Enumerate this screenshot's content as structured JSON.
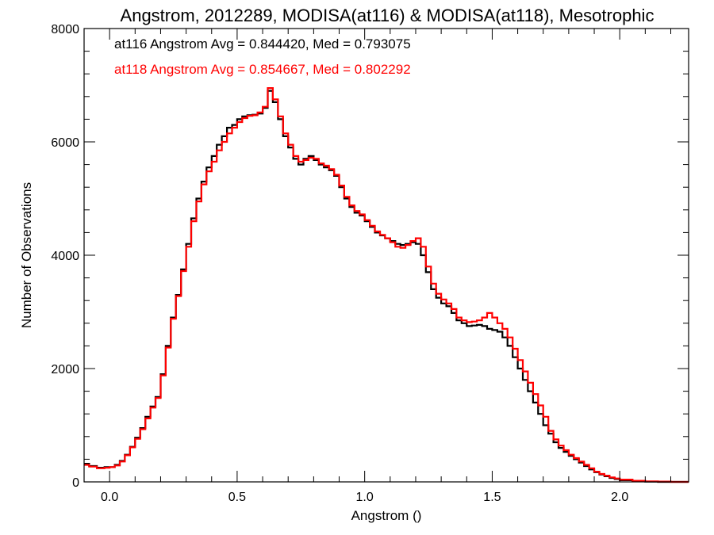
{
  "chart_data": {
    "type": "line",
    "step": true,
    "title": "Angstrom, 2012289, MODISA(at116) & MODISA(at118), Mesotrophic",
    "xlabel": "Angstrom ()",
    "ylabel": "Number of Observations",
    "xlim": [
      -0.1,
      2.27
    ],
    "ylim": [
      0,
      8000
    ],
    "xticks": [
      {
        "value": 0.0,
        "label": "0.0"
      },
      {
        "value": 0.5,
        "label": "0.5"
      },
      {
        "value": 1.0,
        "label": "1.0"
      },
      {
        "value": 1.5,
        "label": "1.5"
      },
      {
        "value": 2.0,
        "label": "2.0"
      }
    ],
    "yticks": [
      {
        "value": 0,
        "label": "0"
      },
      {
        "value": 2000,
        "label": "2000"
      },
      {
        "value": 4000,
        "label": "4000"
      },
      {
        "value": 6000,
        "label": "6000"
      },
      {
        "value": 8000,
        "label": "8000"
      }
    ],
    "x_minor_step": 0.1,
    "y_minor_step": 400,
    "grid": false,
    "annotations": [
      {
        "text": "at116 Angstrom Avg = 0.844420, Med = 0.793075",
        "color": "#000000"
      },
      {
        "text": "at118 Angstrom Avg = 0.854667, Med = 0.802292",
        "color": "#ff0000"
      }
    ],
    "series": [
      {
        "color": "#000000",
        "points": [
          [
            -0.1,
            320
          ],
          [
            -0.08,
            280
          ],
          [
            -0.05,
            250
          ],
          [
            -0.02,
            260
          ],
          [
            0.0,
            260
          ],
          [
            0.02,
            300
          ],
          [
            0.04,
            370
          ],
          [
            0.06,
            480
          ],
          [
            0.08,
            620
          ],
          [
            0.1,
            780
          ],
          [
            0.12,
            950
          ],
          [
            0.14,
            1150
          ],
          [
            0.16,
            1330
          ],
          [
            0.18,
            1500
          ],
          [
            0.2,
            1900
          ],
          [
            0.22,
            2400
          ],
          [
            0.24,
            2900
          ],
          [
            0.26,
            3300
          ],
          [
            0.28,
            3750
          ],
          [
            0.3,
            4200
          ],
          [
            0.32,
            4650
          ],
          [
            0.34,
            5000
          ],
          [
            0.36,
            5300
          ],
          [
            0.38,
            5550
          ],
          [
            0.4,
            5750
          ],
          [
            0.42,
            5950
          ],
          [
            0.44,
            6100
          ],
          [
            0.46,
            6250
          ],
          [
            0.48,
            6300
          ],
          [
            0.5,
            6400
          ],
          [
            0.52,
            6450
          ],
          [
            0.54,
            6470
          ],
          [
            0.56,
            6480
          ],
          [
            0.58,
            6500
          ],
          [
            0.6,
            6600
          ],
          [
            0.62,
            6900
          ],
          [
            0.64,
            6700
          ],
          [
            0.66,
            6400
          ],
          [
            0.68,
            6100
          ],
          [
            0.7,
            5900
          ],
          [
            0.72,
            5700
          ],
          [
            0.74,
            5600
          ],
          [
            0.76,
            5700
          ],
          [
            0.78,
            5750
          ],
          [
            0.8,
            5680
          ],
          [
            0.82,
            5600
          ],
          [
            0.84,
            5550
          ],
          [
            0.86,
            5500
          ],
          [
            0.88,
            5400
          ],
          [
            0.9,
            5200
          ],
          [
            0.92,
            5000
          ],
          [
            0.94,
            4850
          ],
          [
            0.96,
            4750
          ],
          [
            0.98,
            4700
          ],
          [
            1.0,
            4600
          ],
          [
            1.02,
            4500
          ],
          [
            1.04,
            4400
          ],
          [
            1.06,
            4350
          ],
          [
            1.08,
            4300
          ],
          [
            1.1,
            4250
          ],
          [
            1.12,
            4200
          ],
          [
            1.14,
            4180
          ],
          [
            1.16,
            4200
          ],
          [
            1.18,
            4230
          ],
          [
            1.2,
            4200
          ],
          [
            1.22,
            4000
          ],
          [
            1.24,
            3700
          ],
          [
            1.26,
            3400
          ],
          [
            1.28,
            3250
          ],
          [
            1.3,
            3150
          ],
          [
            1.32,
            3100
          ],
          [
            1.34,
            2980
          ],
          [
            1.36,
            2850
          ],
          [
            1.38,
            2800
          ],
          [
            1.4,
            2750
          ],
          [
            1.42,
            2760
          ],
          [
            1.44,
            2770
          ],
          [
            1.46,
            2750
          ],
          [
            1.48,
            2700
          ],
          [
            1.5,
            2680
          ],
          [
            1.52,
            2650
          ],
          [
            1.54,
            2550
          ],
          [
            1.56,
            2400
          ],
          [
            1.58,
            2200
          ],
          [
            1.6,
            2000
          ],
          [
            1.62,
            1800
          ],
          [
            1.64,
            1600
          ],
          [
            1.66,
            1400
          ],
          [
            1.68,
            1200
          ],
          [
            1.7,
            1000
          ],
          [
            1.72,
            850
          ],
          [
            1.74,
            700
          ],
          [
            1.76,
            600
          ],
          [
            1.78,
            530
          ],
          [
            1.8,
            460
          ],
          [
            1.82,
            400
          ],
          [
            1.84,
            340
          ],
          [
            1.86,
            280
          ],
          [
            1.88,
            220
          ],
          [
            1.9,
            170
          ],
          [
            1.92,
            130
          ],
          [
            1.94,
            100
          ],
          [
            1.96,
            70
          ],
          [
            1.98,
            50
          ],
          [
            2.0,
            30
          ],
          [
            2.05,
            15
          ],
          [
            2.1,
            5
          ],
          [
            2.15,
            0
          ],
          [
            2.2,
            0
          ],
          [
            2.27,
            0
          ]
        ]
      },
      {
        "color": "#ff0000",
        "points": [
          [
            -0.1,
            300
          ],
          [
            -0.08,
            270
          ],
          [
            -0.05,
            240
          ],
          [
            -0.02,
            250
          ],
          [
            0.0,
            260
          ],
          [
            0.02,
            290
          ],
          [
            0.04,
            360
          ],
          [
            0.06,
            470
          ],
          [
            0.08,
            610
          ],
          [
            0.1,
            760
          ],
          [
            0.12,
            930
          ],
          [
            0.14,
            1120
          ],
          [
            0.16,
            1310
          ],
          [
            0.18,
            1480
          ],
          [
            0.2,
            1880
          ],
          [
            0.22,
            2370
          ],
          [
            0.24,
            2880
          ],
          [
            0.26,
            3280
          ],
          [
            0.28,
            3720
          ],
          [
            0.3,
            4150
          ],
          [
            0.32,
            4600
          ],
          [
            0.34,
            4950
          ],
          [
            0.36,
            5250
          ],
          [
            0.38,
            5480
          ],
          [
            0.4,
            5650
          ],
          [
            0.42,
            5850
          ],
          [
            0.44,
            6000
          ],
          [
            0.46,
            6150
          ],
          [
            0.48,
            6250
          ],
          [
            0.5,
            6350
          ],
          [
            0.52,
            6420
          ],
          [
            0.54,
            6460
          ],
          [
            0.56,
            6470
          ],
          [
            0.58,
            6520
          ],
          [
            0.6,
            6620
          ],
          [
            0.62,
            6950
          ],
          [
            0.64,
            6750
          ],
          [
            0.66,
            6450
          ],
          [
            0.68,
            6150
          ],
          [
            0.7,
            5950
          ],
          [
            0.72,
            5750
          ],
          [
            0.74,
            5650
          ],
          [
            0.76,
            5680
          ],
          [
            0.78,
            5720
          ],
          [
            0.8,
            5700
          ],
          [
            0.82,
            5620
          ],
          [
            0.84,
            5580
          ],
          [
            0.86,
            5520
          ],
          [
            0.88,
            5420
          ],
          [
            0.9,
            5230
          ],
          [
            0.92,
            5030
          ],
          [
            0.94,
            4880
          ],
          [
            0.96,
            4780
          ],
          [
            0.98,
            4720
          ],
          [
            1.0,
            4620
          ],
          [
            1.02,
            4520
          ],
          [
            1.04,
            4420
          ],
          [
            1.06,
            4360
          ],
          [
            1.08,
            4300
          ],
          [
            1.1,
            4230
          ],
          [
            1.12,
            4150
          ],
          [
            1.14,
            4130
          ],
          [
            1.16,
            4180
          ],
          [
            1.18,
            4250
          ],
          [
            1.2,
            4300
          ],
          [
            1.22,
            4150
          ],
          [
            1.24,
            3800
          ],
          [
            1.26,
            3500
          ],
          [
            1.28,
            3320
          ],
          [
            1.3,
            3220
          ],
          [
            1.32,
            3150
          ],
          [
            1.34,
            3050
          ],
          [
            1.36,
            2900
          ],
          [
            1.38,
            2850
          ],
          [
            1.4,
            2820
          ],
          [
            1.42,
            2830
          ],
          [
            1.44,
            2850
          ],
          [
            1.46,
            2900
          ],
          [
            1.48,
            2980
          ],
          [
            1.5,
            2900
          ],
          [
            1.52,
            2800
          ],
          [
            1.54,
            2700
          ],
          [
            1.56,
            2550
          ],
          [
            1.58,
            2350
          ],
          [
            1.6,
            2150
          ],
          [
            1.62,
            1950
          ],
          [
            1.64,
            1750
          ],
          [
            1.66,
            1550
          ],
          [
            1.68,
            1350
          ],
          [
            1.7,
            1150
          ],
          [
            1.72,
            900
          ],
          [
            1.74,
            750
          ],
          [
            1.76,
            640
          ],
          [
            1.78,
            560
          ],
          [
            1.8,
            480
          ],
          [
            1.82,
            420
          ],
          [
            1.84,
            360
          ],
          [
            1.86,
            300
          ],
          [
            1.88,
            240
          ],
          [
            1.9,
            180
          ],
          [
            1.92,
            140
          ],
          [
            1.94,
            110
          ],
          [
            1.96,
            80
          ],
          [
            1.98,
            60
          ],
          [
            2.0,
            40
          ],
          [
            2.05,
            20
          ],
          [
            2.1,
            10
          ],
          [
            2.15,
            5
          ],
          [
            2.2,
            0
          ],
          [
            2.27,
            0
          ]
        ]
      }
    ]
  }
}
